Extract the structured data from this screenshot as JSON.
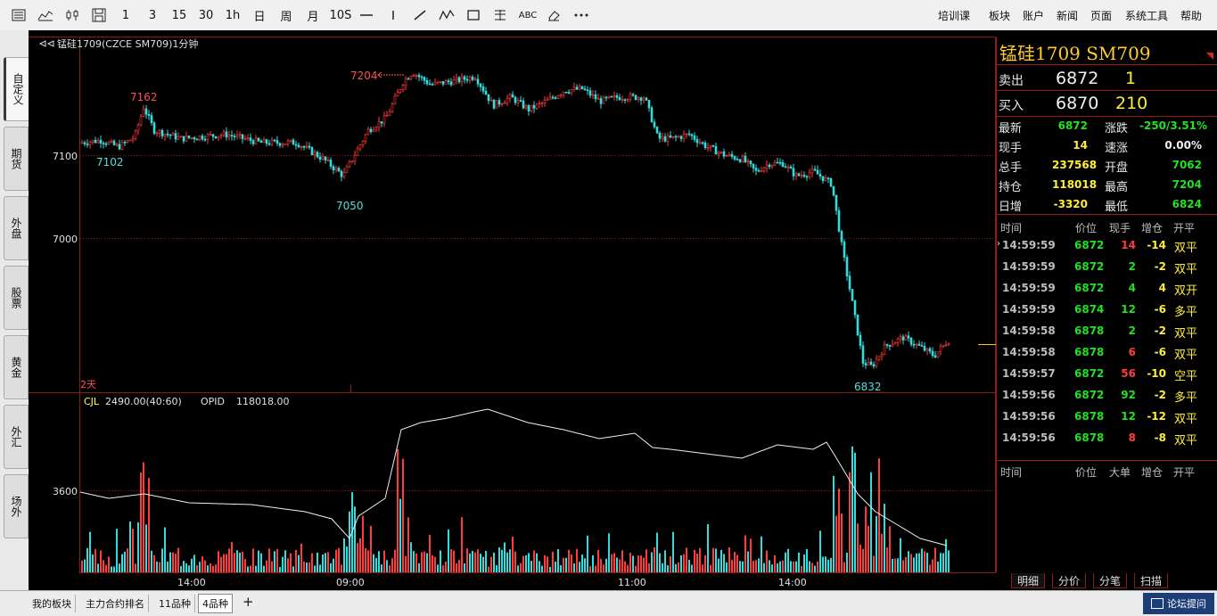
{
  "toolbar": {
    "items": [
      "1",
      "3",
      "15",
      "30",
      "1h",
      "日",
      "周",
      "月",
      "10S",
      "ABC"
    ],
    "icons": [
      "list-icon",
      "line-chart-icon",
      "candlestick-icon",
      "save-icon",
      "hline-icon",
      "vline-icon",
      "ray-icon",
      "wave-icon",
      "rect-icon",
      "fib-icon",
      "text-icon",
      "eraser-icon",
      "more-icon"
    ]
  },
  "menu": [
    "培训课",
    "板块",
    "账户",
    "新闻",
    "页面",
    "系统工具",
    "帮助"
  ],
  "sidebar": [
    "自定义",
    "期货",
    "外盘",
    "股票",
    "黄金",
    "外汇",
    "场外"
  ],
  "chart": {
    "header": "锰硅1709(CZCE SM709)1分钟",
    "y_labels": [
      "7100",
      "7000",
      "3600"
    ],
    "x_labels": [
      "14:00",
      "09:00",
      "11:00",
      "14:00"
    ],
    "annotations": [
      "7162",
      "7204",
      "7102",
      "7050",
      "6832"
    ],
    "days_label": "2天",
    "indicator": {
      "name": "CJL",
      "value": "2490.00(40:60)",
      "opid_label": "OPID",
      "opid_value": "118018.00"
    },
    "colors": {
      "up": "#ff3c3c",
      "down": "#33dddd",
      "grid": "#8b1a1a",
      "line": "#f0f0f0"
    }
  },
  "quote": {
    "title": "锰硅1709 SM709",
    "sell": {
      "label": "卖出",
      "price": "6872",
      "vol": "1"
    },
    "buy": {
      "label": "买入",
      "price": "6870",
      "vol": "210"
    },
    "stats": [
      {
        "l1": "最新",
        "v1": "6872",
        "c1": "green",
        "l2": "涨跌",
        "v2": "-250/3.51%",
        "c2": "green"
      },
      {
        "l1": "现手",
        "v1": "14",
        "c1": "yellow",
        "l2": "速涨",
        "v2": "0.00%",
        "c2": "white"
      },
      {
        "l1": "总手",
        "v1": "237568",
        "c1": "yellow",
        "l2": "开盘",
        "v2": "7062",
        "c2": "green"
      },
      {
        "l1": "持仓",
        "v1": "118018",
        "c1": "yellow",
        "l2": "最高",
        "v2": "7204",
        "c2": "green"
      },
      {
        "l1": "日增",
        "v1": "-3320",
        "c1": "yellow",
        "l2": "最低",
        "v2": "6824",
        "c2": "green"
      }
    ],
    "tick_headers": [
      "时间",
      "价位",
      "现手",
      "增仓",
      "开平"
    ],
    "ticks": [
      {
        "time": "14:59:59",
        "price": "6872",
        "vol": "14",
        "vc": "red",
        "chg": "-14",
        "type": "双平",
        "marker": true
      },
      {
        "time": "14:59:59",
        "price": "6872",
        "vol": "2",
        "vc": "green",
        "chg": "-2",
        "type": "双平"
      },
      {
        "time": "14:59:59",
        "price": "6872",
        "vol": "4",
        "vc": "green",
        "chg": "4",
        "type": "双开"
      },
      {
        "time": "14:59:59",
        "price": "6874",
        "vol": "12",
        "vc": "green",
        "chg": "-6",
        "type": "多平"
      },
      {
        "time": "14:59:58",
        "price": "6878",
        "vol": "2",
        "vc": "green",
        "chg": "-2",
        "type": "双平"
      },
      {
        "time": "14:59:58",
        "price": "6878",
        "vol": "6",
        "vc": "red",
        "chg": "-6",
        "type": "双平"
      },
      {
        "time": "14:59:57",
        "price": "6872",
        "vol": "56",
        "vc": "red",
        "chg": "-10",
        "type": "空平"
      },
      {
        "time": "14:59:56",
        "price": "6872",
        "vol": "92",
        "vc": "green",
        "chg": "-2",
        "type": "多平"
      },
      {
        "time": "14:59:56",
        "price": "6878",
        "vol": "12",
        "vc": "green",
        "chg": "-12",
        "type": "双平"
      },
      {
        "time": "14:59:56",
        "price": "6878",
        "vol": "8",
        "vc": "red",
        "chg": "-8",
        "type": "双平"
      }
    ],
    "big_headers": [
      "时间",
      "价位",
      "大单",
      "增仓",
      "开平"
    ],
    "tabs": [
      "明细",
      "分价",
      "分笔",
      "扫描"
    ]
  },
  "bottom": {
    "tabs": [
      "我的板块",
      "主力合约排名",
      "11品种",
      "4品种"
    ],
    "active": "4品种",
    "add": "+",
    "forum": "论坛提问"
  }
}
